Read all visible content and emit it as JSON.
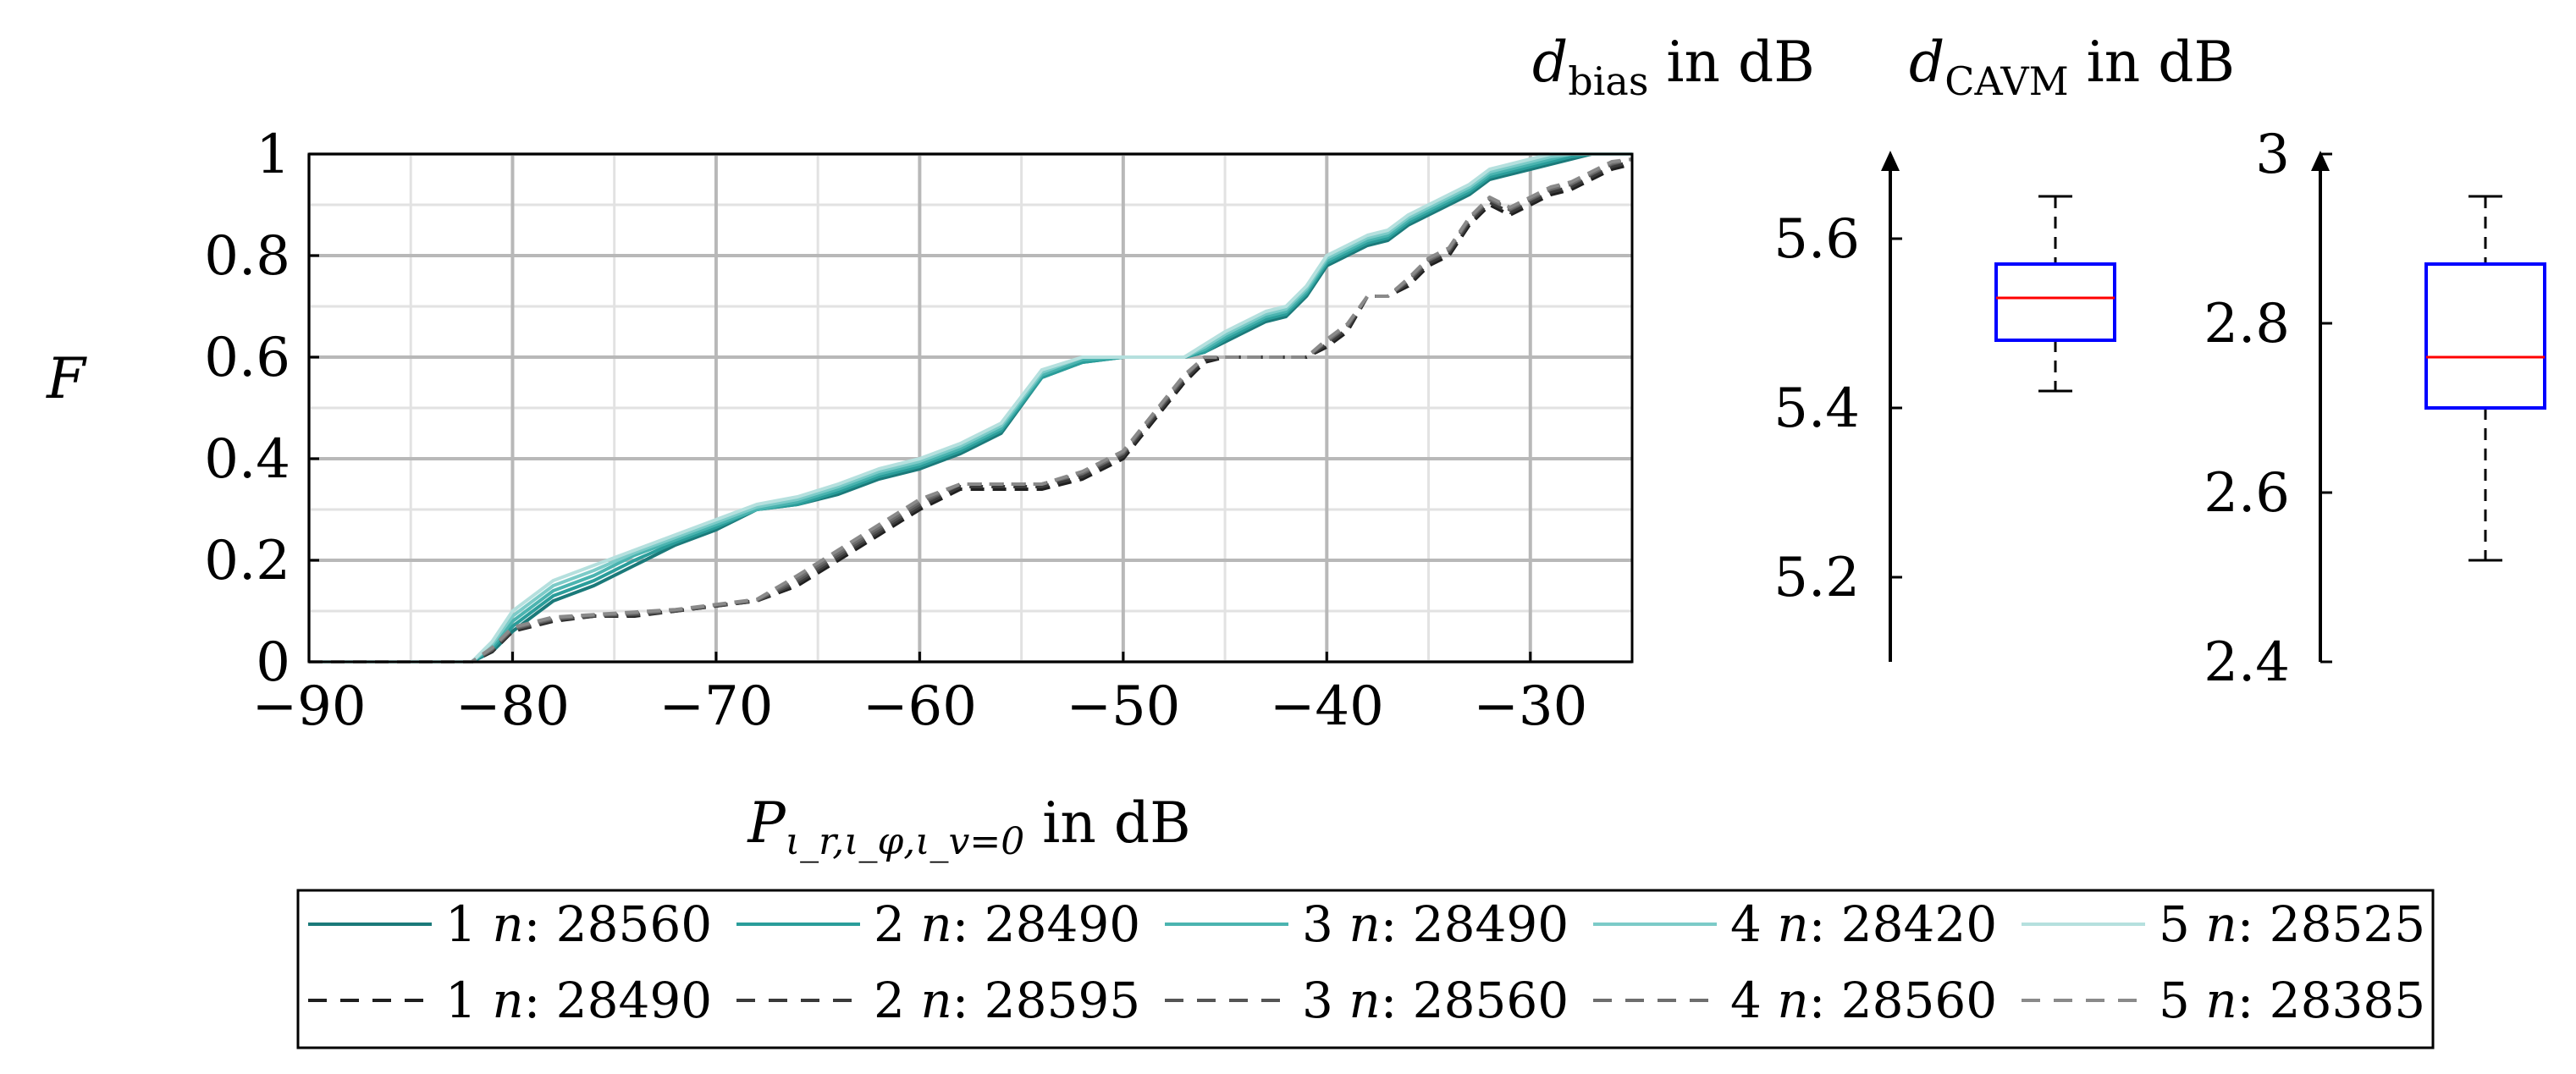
{
  "chart_data": [
    {
      "type": "line",
      "title": "",
      "xlabel": {
        "main": "P",
        "sub": "ι_r,ι_φ,ι_v=0",
        "suffix": " in dB"
      },
      "ylabel": "F",
      "xlim": [
        -90,
        -25
      ],
      "ylim": [
        0,
        1
      ],
      "x_ticks": [
        "−90",
        "−80",
        "−70",
        "−60",
        "−50",
        "−40",
        "−30"
      ],
      "x_tick_values": [
        -90,
        -80,
        -70,
        -60,
        -50,
        -40,
        -30
      ],
      "y_ticks": [
        "0",
        "0.2",
        "0.4",
        "0.6",
        "0.8",
        "1"
      ],
      "y_tick_values": [
        0,
        0.2,
        0.4,
        0.6,
        0.8,
        1
      ],
      "grid": true,
      "legend_position": "bottom",
      "series": [
        {
          "name": "1 n: 28560",
          "label_num": "1",
          "label_n": "n",
          "label_val": ": 28560",
          "color": "#1b7a7a",
          "dash": "solid",
          "x": [
            -90,
            -82,
            -81,
            -80,
            -78,
            -76,
            -74,
            -72,
            -70,
            -68,
            -66,
            -64,
            -62,
            -60,
            -58,
            -56,
            -54,
            -52,
            -50,
            -48,
            -47,
            -46,
            -45,
            -44,
            -43,
            -42,
            -41,
            -40,
            -39,
            -38,
            -37,
            -36,
            -35,
            -34,
            -33,
            -32,
            -31,
            -30,
            -29,
            -28,
            -27,
            -26,
            -25
          ],
          "y": [
            0,
            0,
            0.02,
            0.06,
            0.12,
            0.15,
            0.19,
            0.23,
            0.26,
            0.3,
            0.31,
            0.33,
            0.36,
            0.38,
            0.41,
            0.45,
            0.56,
            0.59,
            0.6,
            0.6,
            0.6,
            0.61,
            0.63,
            0.65,
            0.67,
            0.68,
            0.72,
            0.78,
            0.8,
            0.82,
            0.83,
            0.86,
            0.88,
            0.9,
            0.92,
            0.95,
            0.96,
            0.97,
            0.98,
            0.99,
            1,
            1,
            1
          ]
        },
        {
          "name": "2 n: 28490",
          "label_num": "2",
          "label_n": "n",
          "label_val": ": 28490",
          "color": "#2a9d9a",
          "dash": "solid",
          "x": [
            -90,
            -82,
            -81,
            -80,
            -78,
            -76,
            -74,
            -72,
            -70,
            -68,
            -66,
            -64,
            -62,
            -60,
            -58,
            -56,
            -54,
            -52,
            -50,
            -48,
            -47,
            -46,
            -45,
            -44,
            -43,
            -42,
            -41,
            -40,
            -39,
            -38,
            -37,
            -36,
            -35,
            -34,
            -33,
            -32,
            -31,
            -30,
            -29,
            -28,
            -27,
            -26,
            -25
          ],
          "y": [
            0,
            0,
            0.025,
            0.07,
            0.13,
            0.16,
            0.2,
            0.235,
            0.265,
            0.3,
            0.31,
            0.335,
            0.365,
            0.385,
            0.415,
            0.455,
            0.56,
            0.59,
            0.6,
            0.6,
            0.6,
            0.61,
            0.635,
            0.655,
            0.675,
            0.685,
            0.725,
            0.785,
            0.805,
            0.825,
            0.835,
            0.865,
            0.885,
            0.905,
            0.925,
            0.955,
            0.965,
            0.975,
            0.985,
            0.995,
            1,
            1,
            1
          ]
        },
        {
          "name": "3 n: 28490",
          "label_num": "3",
          "label_n": "n",
          "label_val": ": 28490",
          "color": "#4bb4b0",
          "dash": "solid",
          "x": [
            -90,
            -82,
            -81,
            -80,
            -78,
            -76,
            -74,
            -72,
            -70,
            -68,
            -66,
            -64,
            -62,
            -60,
            -58,
            -56,
            -54,
            -52,
            -50,
            -48,
            -47,
            -46,
            -45,
            -44,
            -43,
            -42,
            -41,
            -40,
            -39,
            -38,
            -37,
            -36,
            -35,
            -34,
            -33,
            -32,
            -31,
            -30,
            -29,
            -28,
            -27,
            -26,
            -25
          ],
          "y": [
            0,
            0,
            0.03,
            0.08,
            0.14,
            0.17,
            0.21,
            0.24,
            0.27,
            0.3,
            0.315,
            0.34,
            0.37,
            0.39,
            0.42,
            0.46,
            0.565,
            0.595,
            0.6,
            0.6,
            0.6,
            0.615,
            0.64,
            0.66,
            0.68,
            0.69,
            0.73,
            0.79,
            0.81,
            0.83,
            0.84,
            0.87,
            0.89,
            0.91,
            0.93,
            0.96,
            0.97,
            0.98,
            0.99,
            1,
            1,
            1,
            1
          ]
        },
        {
          "name": "4 n: 28420",
          "label_num": "4",
          "label_n": "n",
          "label_val": ": 28420",
          "color": "#7ccbc8",
          "dash": "solid",
          "x": [
            -90,
            -82,
            -81,
            -80,
            -78,
            -76,
            -74,
            -72,
            -70,
            -68,
            -66,
            -64,
            -62,
            -60,
            -58,
            -56,
            -54,
            -52,
            -50,
            -48,
            -47,
            -46,
            -45,
            -44,
            -43,
            -42,
            -41,
            -40,
            -39,
            -38,
            -37,
            -36,
            -35,
            -34,
            -33,
            -32,
            -31,
            -30,
            -29,
            -28,
            -27,
            -26,
            -25
          ],
          "y": [
            0,
            0,
            0.035,
            0.09,
            0.15,
            0.18,
            0.215,
            0.245,
            0.275,
            0.305,
            0.32,
            0.345,
            0.375,
            0.395,
            0.425,
            0.465,
            0.57,
            0.6,
            0.6,
            0.6,
            0.6,
            0.62,
            0.645,
            0.665,
            0.685,
            0.695,
            0.735,
            0.795,
            0.815,
            0.835,
            0.845,
            0.875,
            0.895,
            0.915,
            0.935,
            0.965,
            0.975,
            0.985,
            0.995,
            1,
            1,
            1,
            1
          ]
        },
        {
          "name": "5 n: 28525",
          "label_num": "5",
          "label_n": "n",
          "label_val": ": 28525",
          "color": "#b5e0de",
          "dash": "solid",
          "x": [
            -90,
            -82,
            -81,
            -80,
            -78,
            -76,
            -74,
            -72,
            -70,
            -68,
            -66,
            -64,
            -62,
            -60,
            -58,
            -56,
            -54,
            -52,
            -50,
            -48,
            -47,
            -46,
            -45,
            -44,
            -43,
            -42,
            -41,
            -40,
            -39,
            -38,
            -37,
            -36,
            -35,
            -34,
            -33,
            -32,
            -31,
            -30,
            -29,
            -28,
            -27,
            -26,
            -25
          ],
          "y": [
            0,
            0,
            0.04,
            0.1,
            0.16,
            0.19,
            0.22,
            0.25,
            0.28,
            0.31,
            0.325,
            0.35,
            0.38,
            0.4,
            0.43,
            0.47,
            0.575,
            0.6,
            0.6,
            0.6,
            0.6,
            0.625,
            0.65,
            0.67,
            0.69,
            0.7,
            0.74,
            0.8,
            0.82,
            0.84,
            0.85,
            0.88,
            0.9,
            0.92,
            0.94,
            0.97,
            0.98,
            0.99,
            1,
            1,
            1,
            1,
            1
          ]
        },
        {
          "name": "1 n: 28490",
          "label_num": "1",
          "label_n": "n",
          "label_val": ": 28490",
          "color": "#1f1f1f",
          "dash": "dashed",
          "x": [
            -90,
            -82,
            -81,
            -80,
            -78,
            -76,
            -74,
            -72,
            -70,
            -68,
            -66,
            -64,
            -62,
            -60,
            -58,
            -56,
            -54,
            -52,
            -50,
            -48,
            -47,
            -46,
            -45,
            -44,
            -43,
            -42,
            -41,
            -40,
            -39,
            -38,
            -37,
            -36,
            -35,
            -34,
            -33,
            -32,
            -31,
            -30,
            -29,
            -28,
            -27,
            -26,
            -25
          ],
          "y": [
            0,
            0,
            0.02,
            0.06,
            0.08,
            0.09,
            0.09,
            0.1,
            0.11,
            0.12,
            0.15,
            0.2,
            0.25,
            0.3,
            0.34,
            0.34,
            0.34,
            0.36,
            0.4,
            0.5,
            0.55,
            0.59,
            0.6,
            0.6,
            0.6,
            0.6,
            0.6,
            0.62,
            0.65,
            0.72,
            0.72,
            0.74,
            0.78,
            0.8,
            0.86,
            0.9,
            0.88,
            0.9,
            0.92,
            0.93,
            0.95,
            0.97,
            0.98
          ]
        },
        {
          "name": "2 n: 28595",
          "label_num": "2",
          "label_n": "n",
          "label_val": ": 28595",
          "color": "#3a3a3a",
          "dash": "dashed",
          "x": [
            -90,
            -82,
            -81,
            -80,
            -78,
            -76,
            -74,
            -72,
            -70,
            -68,
            -66,
            -64,
            -62,
            -60,
            -58,
            -56,
            -54,
            -52,
            -50,
            -48,
            -47,
            -46,
            -45,
            -44,
            -43,
            -42,
            -41,
            -40,
            -39,
            -38,
            -37,
            -36,
            -35,
            -34,
            -33,
            -32,
            -31,
            -30,
            -29,
            -28,
            -27,
            -26,
            -25
          ],
          "y": [
            0,
            0,
            0.022,
            0.062,
            0.082,
            0.09,
            0.092,
            0.1,
            0.11,
            0.12,
            0.155,
            0.205,
            0.255,
            0.305,
            0.345,
            0.345,
            0.345,
            0.365,
            0.405,
            0.505,
            0.555,
            0.595,
            0.6,
            0.6,
            0.6,
            0.6,
            0.6,
            0.625,
            0.655,
            0.72,
            0.72,
            0.745,
            0.785,
            0.805,
            0.865,
            0.905,
            0.885,
            0.905,
            0.925,
            0.935,
            0.955,
            0.975,
            0.985
          ]
        },
        {
          "name": "3 n: 28560",
          "label_num": "3",
          "label_n": "n",
          "label_val": ": 28560",
          "color": "#555555",
          "dash": "dashed",
          "x": [
            -90,
            -82,
            -81,
            -80,
            -78,
            -76,
            -74,
            -72,
            -70,
            -68,
            -66,
            -64,
            -62,
            -60,
            -58,
            -56,
            -54,
            -52,
            -50,
            -48,
            -47,
            -46,
            -45,
            -44,
            -43,
            -42,
            -41,
            -40,
            -39,
            -38,
            -37,
            -36,
            -35,
            -34,
            -33,
            -32,
            -31,
            -30,
            -29,
            -28,
            -27,
            -26,
            -25
          ],
          "y": [
            0,
            0,
            0.024,
            0.064,
            0.084,
            0.091,
            0.094,
            0.101,
            0.111,
            0.121,
            0.16,
            0.21,
            0.26,
            0.31,
            0.35,
            0.35,
            0.35,
            0.37,
            0.41,
            0.51,
            0.56,
            0.6,
            0.6,
            0.6,
            0.6,
            0.6,
            0.6,
            0.63,
            0.66,
            0.72,
            0.72,
            0.75,
            0.79,
            0.81,
            0.87,
            0.91,
            0.89,
            0.91,
            0.93,
            0.94,
            0.96,
            0.98,
            0.99
          ]
        },
        {
          "name": "4 n: 28560",
          "label_num": "4",
          "label_n": "n",
          "label_val": ": 28560",
          "color": "#6e6e6e",
          "dash": "dashed",
          "x": [
            -90,
            -82,
            -81,
            -80,
            -78,
            -76,
            -74,
            -72,
            -70,
            -68,
            -66,
            -64,
            -62,
            -60,
            -58,
            -56,
            -54,
            -52,
            -50,
            -48,
            -47,
            -46,
            -45,
            -44,
            -43,
            -42,
            -41,
            -40,
            -39,
            -38,
            -37,
            -36,
            -35,
            -34,
            -33,
            -32,
            -31,
            -30,
            -29,
            -28,
            -27,
            -26,
            -25
          ],
          "y": [
            0,
            0,
            0.026,
            0.066,
            0.086,
            0.092,
            0.096,
            0.102,
            0.112,
            0.122,
            0.165,
            0.215,
            0.265,
            0.315,
            0.35,
            0.35,
            0.35,
            0.372,
            0.412,
            0.512,
            0.562,
            0.6,
            0.6,
            0.6,
            0.6,
            0.6,
            0.6,
            0.632,
            0.662,
            0.72,
            0.72,
            0.752,
            0.792,
            0.812,
            0.872,
            0.912,
            0.892,
            0.912,
            0.932,
            0.942,
            0.962,
            0.982,
            0.99
          ]
        },
        {
          "name": "5 n: 28385",
          "label_num": "5",
          "label_n": "n",
          "label_val": ": 28385",
          "color": "#8a8a8a",
          "dash": "dashed",
          "x": [
            -90,
            -82,
            -81,
            -80,
            -78,
            -76,
            -74,
            -72,
            -70,
            -68,
            -66,
            -64,
            -62,
            -60,
            -58,
            -56,
            -54,
            -52,
            -50,
            -48,
            -47,
            -46,
            -45,
            -44,
            -43,
            -42,
            -41,
            -40,
            -39,
            -38,
            -37,
            -36,
            -35,
            -34,
            -33,
            -32,
            -31,
            -30,
            -29,
            -28,
            -27,
            -26,
            -25
          ],
          "y": [
            0,
            0,
            0.028,
            0.068,
            0.088,
            0.093,
            0.098,
            0.103,
            0.113,
            0.123,
            0.17,
            0.22,
            0.27,
            0.32,
            0.35,
            0.35,
            0.35,
            0.375,
            0.415,
            0.515,
            0.565,
            0.6,
            0.6,
            0.6,
            0.6,
            0.6,
            0.6,
            0.635,
            0.665,
            0.72,
            0.72,
            0.755,
            0.795,
            0.815,
            0.875,
            0.915,
            0.895,
            0.915,
            0.935,
            0.945,
            0.965,
            0.985,
            0.99
          ]
        }
      ]
    },
    {
      "type": "box",
      "title": {
        "main": "d",
        "sub": "bias",
        "suffix": " in dB"
      },
      "ylim": [
        5.1,
        5.7
      ],
      "y_ticks": [
        "5.2",
        "5.4",
        "5.6"
      ],
      "y_tick_values": [
        5.2,
        5.4,
        5.6
      ],
      "whisker_low": 5.42,
      "q1": 5.48,
      "median": 5.53,
      "q3": 5.57,
      "whisker_high": 5.65,
      "box_color": "#0000ff",
      "median_color": "#ff0000"
    },
    {
      "type": "box",
      "title": {
        "main": "d",
        "sub": "CAVM",
        "suffix": " in dB"
      },
      "ylim": [
        2.4,
        3.0
      ],
      "y_ticks": [
        "2.4",
        "2.6",
        "2.8",
        "3"
      ],
      "y_tick_values": [
        2.4,
        2.6,
        2.8,
        3.0
      ],
      "whisker_low": 2.52,
      "q1": 2.7,
      "median": 2.76,
      "q3": 2.87,
      "whisker_high": 2.95,
      "box_color": "#0000ff",
      "median_color": "#ff0000"
    }
  ]
}
